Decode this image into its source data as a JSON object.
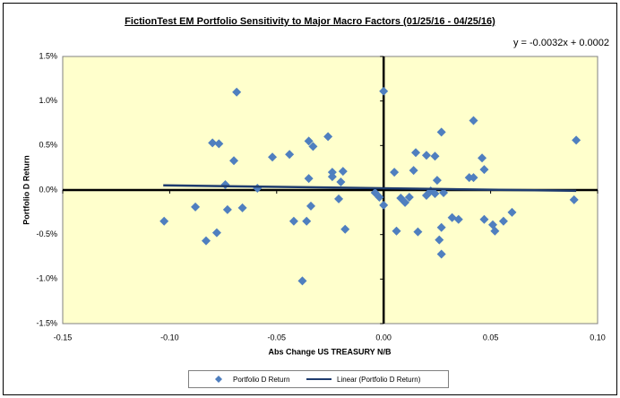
{
  "chart_data": {
    "type": "scatter",
    "title": "FictionTest EM Portfolio Sensitivity to Major Macro Factors (01/25/16 - 04/25/16)",
    "annotation": "y = -0.0032x + 0.0002",
    "x_label": "Abs Change US TREASURY N/B",
    "y_label": "Portfolio D Return",
    "xlim": [
      -0.15,
      0.1
    ],
    "ylim": [
      -1.5,
      1.5
    ],
    "xticks": [
      -0.15,
      {
        "value": -0.1,
        "label": "-0.10"
      },
      -0.05,
      {
        "value": 0,
        "label": "0.00"
      },
      0.05,
      {
        "value": 0.1,
        "label": "0.10"
      }
    ],
    "yticks": [
      {
        "value": -1.5,
        "label": "-1.5%"
      },
      {
        "value": -1,
        "label": "-1.0%"
      },
      {
        "value": -0.5,
        "label": "-0.5%"
      },
      {
        "value": 0,
        "label": "0.0%"
      },
      {
        "value": 0.5,
        "label": "0.5%"
      },
      {
        "value": 1,
        "label": "1.0%"
      },
      {
        "value": 1.5,
        "label": "1.5%"
      }
    ],
    "series": [
      {
        "name": "Portfolio D Return",
        "color": "#4f7fbf",
        "x": [
          -0.1026,
          -0.088,
          -0.083,
          -0.08,
          -0.077,
          -0.0687,
          -0.07,
          -0.074,
          -0.073,
          -0.078,
          -0.066,
          -0.059,
          -0.052,
          -0.042,
          -0.044,
          -0.036,
          -0.038,
          -0.035,
          -0.033,
          -0.035,
          -0.034,
          -0.026,
          -0.024,
          -0.024,
          -0.019,
          -0.02,
          -0.021,
          -0.018,
          -0.004,
          -0.002,
          0.0,
          0.0,
          0.005,
          0.006,
          0.008,
          0.01,
          0.012,
          0.014,
          0.015,
          0.016,
          0.02,
          0.02,
          0.022,
          0.024,
          0.025,
          0.024,
          0.026,
          0.027,
          0.027,
          0.027,
          0.028,
          0.032,
          0.035,
          0.04,
          0.042,
          0.042,
          0.046,
          0.047,
          0.047,
          0.051,
          0.052,
          0.056,
          0.06,
          0.09,
          0.089
        ],
        "values": [
          -0.35,
          -0.19,
          -0.57,
          0.53,
          0.52,
          1.1,
          0.33,
          0.06,
          -0.22,
          -0.48,
          -0.2,
          0.02,
          0.37,
          -0.35,
          0.4,
          -0.35,
          -1.02,
          0.55,
          0.49,
          0.13,
          -0.18,
          0.6,
          0.2,
          0.15,
          0.21,
          0.09,
          -0.1,
          -0.44,
          -0.03,
          -0.08,
          -0.17,
          1.11,
          0.2,
          -0.46,
          -0.09,
          -0.14,
          -0.08,
          0.22,
          0.42,
          -0.47,
          0.39,
          -0.06,
          -0.01,
          0.38,
          0.11,
          -0.04,
          -0.56,
          0.65,
          -0.42,
          -0.72,
          -0.03,
          -0.31,
          -0.33,
          0.14,
          0.78,
          0.14,
          0.36,
          0.23,
          -0.33,
          -0.39,
          -0.46,
          -0.35,
          -0.25,
          0.56,
          -0.11
        ]
      }
    ],
    "trendline": {
      "name": "Linear (Portfolio D Return)",
      "color": "#1f3c6e",
      "x": [
        -0.103,
        0.09
      ],
      "values": [
        0.053,
        -0.009
      ]
    }
  }
}
